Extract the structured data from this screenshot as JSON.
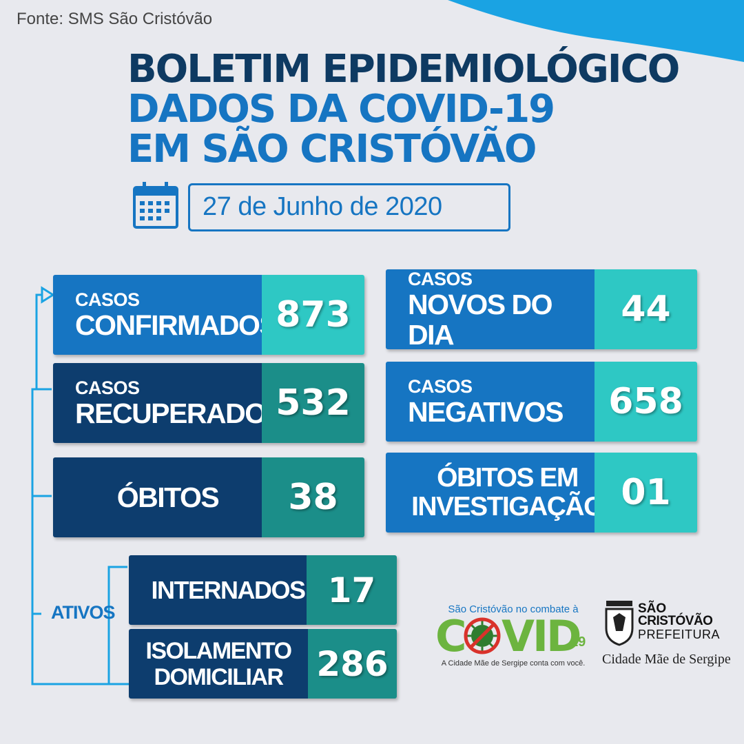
{
  "source": "Fonte: SMS São Cristóvão",
  "title": {
    "line1": "BOLETIM EPIDEMIOLÓGICO",
    "line2": "DADOS DA COVID-19",
    "line3": "EM SÃO CRISTÓVÃO"
  },
  "date": "27 de Junho de 2020",
  "cards": {
    "confirmados": {
      "line1": "CASOS",
      "line2": "CONFIRMADOS",
      "value": "873"
    },
    "novos": {
      "line1": "CASOS",
      "line2": "NOVOS DO DIA",
      "value": "44"
    },
    "recuperados": {
      "line1": "CASOS",
      "line2": "RECUPERADOS",
      "value": "532"
    },
    "negativos": {
      "line1": "CASOS",
      "line2": "NEGATIVOS",
      "value": "658"
    },
    "obitos": {
      "label": "ÓBITOS",
      "value": "38"
    },
    "investigacao": {
      "line1": "ÓBITOS EM",
      "line2": "INVESTIGAÇÃO",
      "value": "01"
    },
    "internados": {
      "label": "INTERNADOS",
      "value": "17"
    },
    "isolamento": {
      "line1": "ISOLAMENTO",
      "line2": "DOMICILIAR",
      "value": "286"
    }
  },
  "ativos_label": "ATIVOS",
  "covid_logo": {
    "top": "São Cristóvão no combate à",
    "word_a": "C",
    "word_b": "VID",
    "suffix": "19",
    "tagline": "A Cidade Mãe de Sergipe conta com você."
  },
  "prefeitura_logo": {
    "line1": "SÃO",
    "line2": "CRISTÓVÃO",
    "line3": "PREFEITURA",
    "motto": "Cidade Mãe de Sergipe"
  },
  "colors": {
    "background": "#e8e9ee",
    "navy": "#0d3d6e",
    "brand_blue": "#1675c2",
    "dark_title": "#0e3a62",
    "teal": "#2ec8c4",
    "dark_teal": "#1b8e89",
    "covid_green": "#6cb43f",
    "covid_red": "#d9322b"
  },
  "icons": {
    "calendar": "calendar-icon",
    "shield": "coat-of-arms-icon",
    "virus": "virus-icon"
  }
}
